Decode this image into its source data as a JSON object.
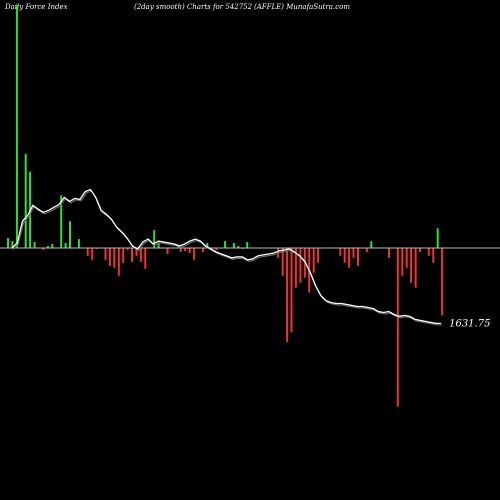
{
  "header": {
    "left": "Daily Force  Index",
    "middle": "(2day smooth) Charts for 542752",
    "right": "(AFFLE) MunafaSutra.com"
  },
  "colors": {
    "background": "#000000",
    "positive": "#33dd33",
    "negative": "#ee3333",
    "zero_line": "#bbbbbb",
    "smooth_line": "#ffffff",
    "smooth_shadow": "#666666"
  },
  "chart_data": {
    "type": "bar",
    "ylim": [
      -210,
      245
    ],
    "last_value_label": "1631.75",
    "values": [
      10,
      7,
      245,
      0,
      95,
      77,
      6,
      0,
      -2,
      2,
      4,
      0,
      53,
      5,
      27,
      0,
      9,
      0,
      -8,
      -12,
      -1,
      0,
      -12,
      -18,
      -20,
      -28,
      -15,
      -2,
      -14,
      -8,
      -14,
      -21,
      0,
      18,
      6,
      0,
      -6,
      0,
      0,
      -4,
      -3,
      -5,
      -12,
      0,
      -4,
      5,
      0,
      -2,
      0,
      7,
      0,
      5,
      2,
      -1,
      6,
      0,
      0,
      0,
      0,
      0,
      0,
      -10,
      -28,
      -95,
      -85,
      -40,
      -35,
      -30,
      -45,
      -25,
      -15,
      0,
      0,
      0,
      0,
      -8,
      -15,
      -20,
      -10,
      -18,
      0,
      -4,
      7,
      0,
      0,
      0,
      -10,
      0,
      -160,
      -28,
      -20,
      -35,
      -40,
      -4,
      0,
      -8,
      -15,
      20,
      -68
    ],
    "smooth": [
      0,
      5,
      27,
      33,
      43,
      39,
      36,
      38,
      41,
      44,
      51,
      47,
      50,
      49,
      57,
      59,
      51,
      38,
      34,
      29,
      21,
      16,
      10,
      2,
      -1,
      6,
      9,
      4,
      7,
      6,
      5,
      4,
      2,
      4,
      7,
      9,
      7,
      2,
      -1,
      -4,
      -6,
      -8,
      -10,
      -9,
      -9,
      -12,
      -11,
      -8,
      -7,
      -6,
      -5,
      -3,
      -2,
      -1,
      -4,
      -8,
      -14,
      -25,
      -38,
      -48,
      -53,
      -55,
      -56,
      -56,
      -57,
      -58,
      -59,
      -59,
      -60,
      -61,
      -64,
      -65,
      -64,
      -67,
      -69,
      -68,
      -69,
      -72,
      -73,
      -74,
      -75,
      -76,
      -76
    ]
  }
}
